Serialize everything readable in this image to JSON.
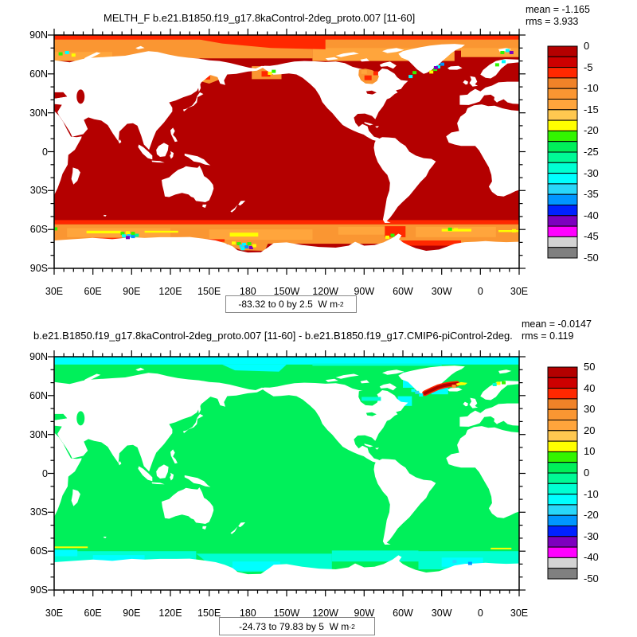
{
  "palette": [
    "#b40000",
    "#cd0000",
    "#ff2800",
    "#f08228",
    "#fa9632",
    "#ffa53c",
    "#ffc850",
    "#ffff00",
    "#32f500",
    "#00f05a",
    "#00fa96",
    "#00ffd2",
    "#00ffff",
    "#28d7fa",
    "#0096ff",
    "#0022ff",
    "#7d00be",
    "#ff00ff",
    "#d3d3d3",
    "#808080"
  ],
  "panels": [
    {
      "title": "MELTH_F b.e21.B1850.f19_g17.8kaControl-2deg_proto.007 [11-60]",
      "mean": "mean = -1.165",
      "rms": "rms = 3.933",
      "caption_range": "-83.32 to 0 by 2.5",
      "caption_units": "  W m",
      "caption_exp": "-2",
      "colorbar_labels": [
        "0",
        "-5",
        "-10",
        "-15",
        "-20",
        "-25",
        "-30",
        "-35",
        "-40",
        "-45",
        "-50"
      ],
      "xtick_labels": [
        "30E",
        "60E",
        "90E",
        "120E",
        "150E",
        "180",
        "150W",
        "120W",
        "90W",
        "60W",
        "30W",
        "0",
        "30E"
      ],
      "ytick_labels": [
        "90N",
        "60N",
        "30N",
        "0",
        "30S",
        "60S",
        "90S"
      ]
    },
    {
      "title": "b.e21.B1850.f19_g17.8kaControl-2deg_proto.007 [11-60] - b.e21.B1850.f19_g17.CMIP6-piControl-2deg.",
      "mean": "mean = -0.0147",
      "rms": "rms = 0.119",
      "caption_range": "-24.73 to 79.83 by 5",
      "caption_units": "  W m",
      "caption_exp": "-2",
      "colorbar_labels": [
        "50",
        "40",
        "30",
        "20",
        "10",
        "0",
        "-10",
        "-20",
        "-30",
        "-40",
        "-50"
      ],
      "xtick_labels": [
        "30E",
        "60E",
        "90E",
        "120E",
        "150E",
        "180",
        "150W",
        "120W",
        "90W",
        "60W",
        "30W",
        "0",
        "30E"
      ],
      "ytick_labels": [
        "90N",
        "60N",
        "30N",
        "0",
        "30S",
        "60S",
        "90S"
      ]
    }
  ],
  "chart_data": [
    {
      "type": "heatmap",
      "subtype": "global map, cylindrical equidistant, land masked white",
      "variable": "MELTH_F",
      "title": "MELTH_F b.e21.B1850.f19_g17.8kaControl-2deg_proto.007 [11-60]",
      "units": "W m-2",
      "mean": -1.165,
      "rms": 3.933,
      "data_min": -83.32,
      "data_max": 0,
      "contour_interval": 2.5,
      "levels": [
        0,
        -2.5,
        -5,
        -7.5,
        -10,
        -12.5,
        -15,
        -17.5,
        -20,
        -22.5,
        -25,
        -27.5,
        -30,
        -32.5,
        -35,
        -37.5,
        -40,
        -42.5,
        -45,
        -47.5,
        -50
      ],
      "colorbar_tick_values": [
        0,
        -5,
        -10,
        -15,
        -20,
        -25,
        -30,
        -35,
        -40,
        -45,
        -50
      ],
      "xtick_labels": [
        "30E",
        "60E",
        "90E",
        "120E",
        "150E",
        "180",
        "150W",
        "120W",
        "90W",
        "60W",
        "30W",
        "0",
        "30E"
      ],
      "ytick_labels": [
        "90N",
        "60N",
        "30N",
        "0",
        "30S",
        "60S",
        "90S"
      ],
      "lon_range": [
        30,
        390
      ],
      "lat_range": [
        -90,
        90
      ],
      "description": "Ocean mostly 0 to -2.5 (dark red). Orange bands (-10 to -15) across the Arctic and Southern Ocean with a red strip at 90N and near 55S. Strongly negative cells (yellow/green/cyan/blue/purple, -20 to -45) scattered along the Antarctic coast, Ross Sea, SE Greenland, Svalbard and Bering Sea."
    },
    {
      "type": "heatmap",
      "subtype": "global difference map, cylindrical equidistant, land masked white",
      "variable": "MELTH_F difference",
      "title": "b.e21.B1850.f19_g17.8kaControl-2deg_proto.007 [11-60] - b.e21.B1850.f19_g17.CMIP6-piControl-2deg.",
      "units": "W m-2",
      "mean": -0.0147,
      "rms": 0.119,
      "data_min": -24.73,
      "data_max": 79.83,
      "contour_interval": 5,
      "levels": [
        50,
        45,
        40,
        35,
        30,
        25,
        20,
        15,
        10,
        5,
        0,
        -5,
        -10,
        -15,
        -20,
        -25,
        -30,
        -35,
        -40,
        -45,
        -50
      ],
      "colorbar_tick_values": [
        50,
        40,
        30,
        20,
        10,
        0,
        -10,
        -20,
        -30,
        -40,
        -50
      ],
      "xtick_labels": [
        "30E",
        "60E",
        "90E",
        "120E",
        "150E",
        "180",
        "150W",
        "120W",
        "90W",
        "60W",
        "30W",
        "0",
        "30E"
      ],
      "ytick_labels": [
        "90N",
        "60N",
        "30N",
        "0",
        "30S",
        "60S",
        "90S"
      ],
      "lon_range": [
        30,
        390
      ],
      "lat_range": [
        -90,
        90
      ],
      "description": "Ocean mostly -5 to 0 (green). Cyan band (-10 to -15) along the Arctic margin and turquoise band (-5 to -10) around Antarctica. Strong positive streak (up to +50, dark red with red edge and a yellow patch) along the SE Greenland coast / Denmark Strait."
    }
  ]
}
